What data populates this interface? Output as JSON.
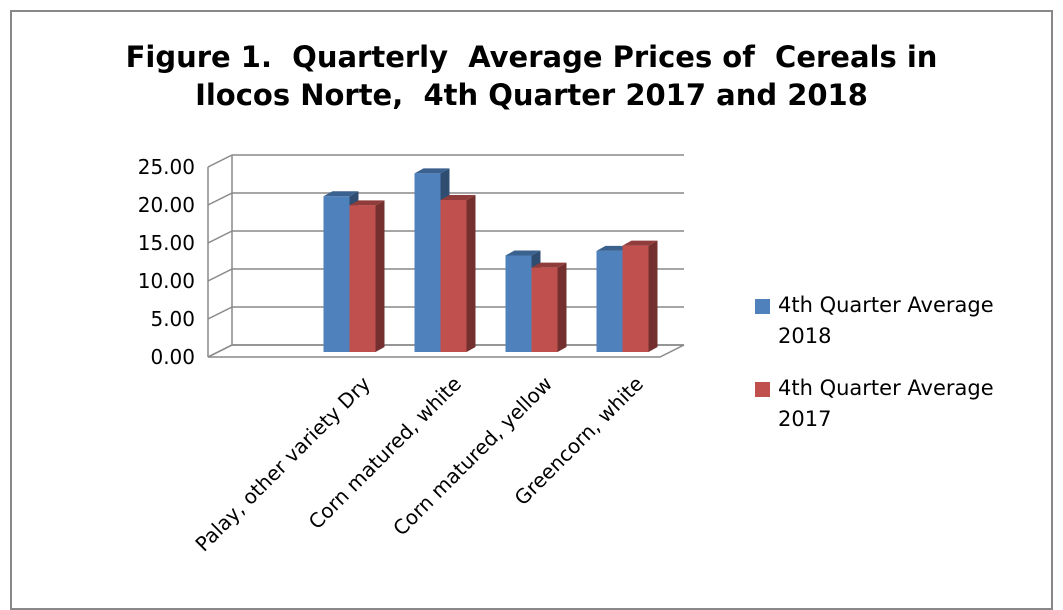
{
  "chart_data": {
    "type": "bar3d",
    "title": [
      "Figure 1.  Quarterly  Average Prices of  Cereals in",
      "Ilocos Norte,  4th Quarter 2017 and 2018"
    ],
    "categories": [
      "Palay, other variety Dry",
      "Corn matured, white",
      "Corn matured, yellow",
      "Greencorn, white"
    ],
    "series": [
      {
        "name": "4th Quarter Average 2018",
        "color": "#4f81bd",
        "values": [
          20.5,
          23.5,
          12.7,
          13.3
        ]
      },
      {
        "name": "4th Quarter Average 2017",
        "color": "#c0504d",
        "values": [
          19.3,
          20.0,
          11.1,
          14.0
        ]
      }
    ],
    "ylim": [
      0,
      25
    ],
    "yticks": [
      {
        "value": 0,
        "label": "0.00"
      },
      {
        "value": 5,
        "label": "5.00"
      },
      {
        "value": 10,
        "label": "10.00"
      },
      {
        "value": 15,
        "label": "15.00"
      },
      {
        "value": 20,
        "label": "20.00"
      },
      {
        "value": 25,
        "label": "25.00"
      }
    ],
    "grid": true,
    "legend": "right"
  }
}
